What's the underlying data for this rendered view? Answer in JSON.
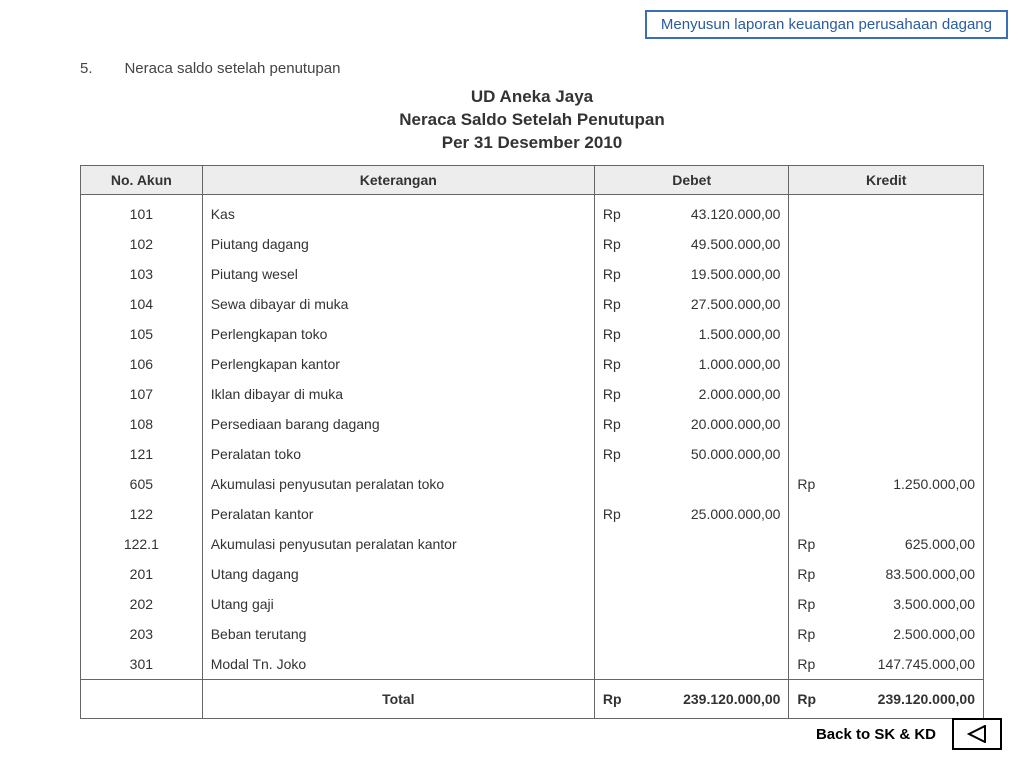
{
  "banner": "Menyusun laporan keuangan perusahaan dagang",
  "section_num": "5.",
  "section_title": "Neraca saldo setelah penutupan",
  "doc_title_lines": [
    "UD Aneka Jaya",
    "Neraca Saldo Setelah Penutupan",
    "Per 31 Desember 2010"
  ],
  "columns": [
    "No. Akun",
    "Keterangan",
    "Debet",
    "Kredit"
  ],
  "rows": [
    {
      "akun": "101",
      "ket": "Kas",
      "debet": "43.120.000,00",
      "kredit": ""
    },
    {
      "akun": "102",
      "ket": "Piutang dagang",
      "debet": "49.500.000,00",
      "kredit": ""
    },
    {
      "akun": "103",
      "ket": "Piutang wesel",
      "debet": "19.500.000,00",
      "kredit": ""
    },
    {
      "akun": "104",
      "ket": "Sewa dibayar di muka",
      "debet": "27.500.000,00",
      "kredit": ""
    },
    {
      "akun": "105",
      "ket": "Perlengkapan toko",
      "debet": "1.500.000,00",
      "kredit": ""
    },
    {
      "akun": "106",
      "ket": "Perlengkapan kantor",
      "debet": "1.000.000,00",
      "kredit": ""
    },
    {
      "akun": "107",
      "ket": "Iklan dibayar di muka",
      "debet": "2.000.000,00",
      "kredit": ""
    },
    {
      "akun": "108",
      "ket": "Persediaan barang dagang",
      "debet": "20.000.000,00",
      "kredit": ""
    },
    {
      "akun": "121",
      "ket": "Peralatan toko",
      "debet": "50.000.000,00",
      "kredit": ""
    },
    {
      "akun": "605",
      "ket": "Akumulasi penyusutan peralatan toko",
      "debet": "",
      "kredit": "1.250.000,00"
    },
    {
      "akun": "122",
      "ket": "Peralatan kantor",
      "debet": "25.000.000,00",
      "kredit": ""
    },
    {
      "akun": "122.1",
      "ket": "Akumulasi penyusutan peralatan kantor",
      "debet": "",
      "kredit": "625.000,00"
    },
    {
      "akun": "201",
      "ket": "Utang dagang",
      "debet": "",
      "kredit": "83.500.000,00"
    },
    {
      "akun": "202",
      "ket": "Utang gaji",
      "debet": "",
      "kredit": "3.500.000,00"
    },
    {
      "akun": "203",
      "ket": "Beban terutang",
      "debet": "",
      "kredit": "2.500.000,00"
    },
    {
      "akun": "301",
      "ket": "Modal Tn. Joko",
      "debet": "",
      "kredit": "147.745.000,00",
      "kredit_nospace": true
    }
  ],
  "total_label": "Total",
  "total_debet": "239.120.000,00",
  "total_kredit": "239.120.000,00",
  "total_nospace": true,
  "back_label": "Back to SK & KD",
  "colors": {
    "banner_border": "#3b6fb5",
    "banner_text": "#2a5ca0",
    "header_bg": "#ededed",
    "border": "#666666",
    "text": "#333333"
  }
}
